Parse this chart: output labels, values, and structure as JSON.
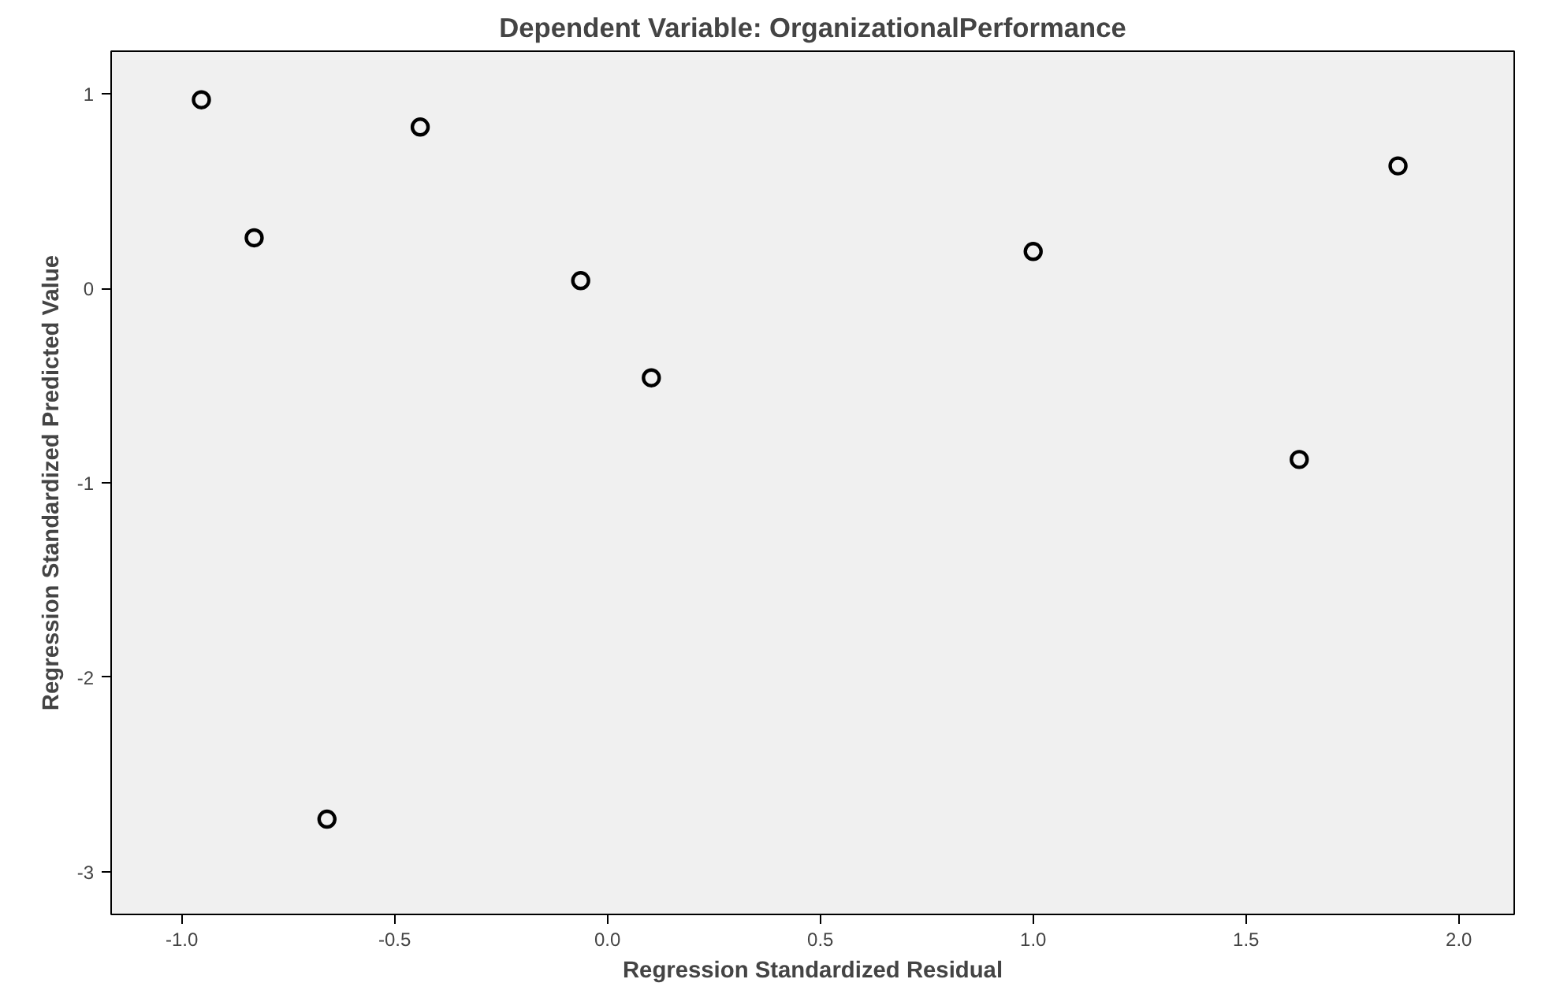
{
  "chart_data": {
    "type": "scatter",
    "title": "Dependent Variable: OrganizationalPerformance",
    "xlabel": "Regression Standardized Residual",
    "ylabel": "Regression Standardized Predicted Value",
    "x": [
      -0.954,
      -0.83,
      -0.44,
      -0.063,
      0.103,
      1.0,
      1.857,
      1.625,
      -0.659
    ],
    "series": [
      {
        "color": "#000000",
        "values": [
          0.97,
          0.26,
          0.83,
          0.04,
          -0.46,
          0.19,
          0.63,
          -0.88,
          -2.73
        ]
      }
    ],
    "xlim": [
      -1.166,
      2.13
    ],
    "ylim": [
      -3.22,
      1.22
    ],
    "xticks": [
      {
        "value": -1.0,
        "label": "-1.0"
      },
      {
        "value": -0.5,
        "label": "-0.5"
      },
      {
        "value": 0.0,
        "label": "0.0"
      },
      {
        "value": 0.5,
        "label": "0.5"
      },
      {
        "value": 1.0,
        "label": "1.0"
      },
      {
        "value": 1.5,
        "label": "1.5"
      },
      {
        "value": 2.0,
        "label": "2.0"
      }
    ],
    "yticks": [
      -3,
      -2,
      -1,
      0,
      1
    ],
    "grid": false,
    "marker": "circle"
  }
}
